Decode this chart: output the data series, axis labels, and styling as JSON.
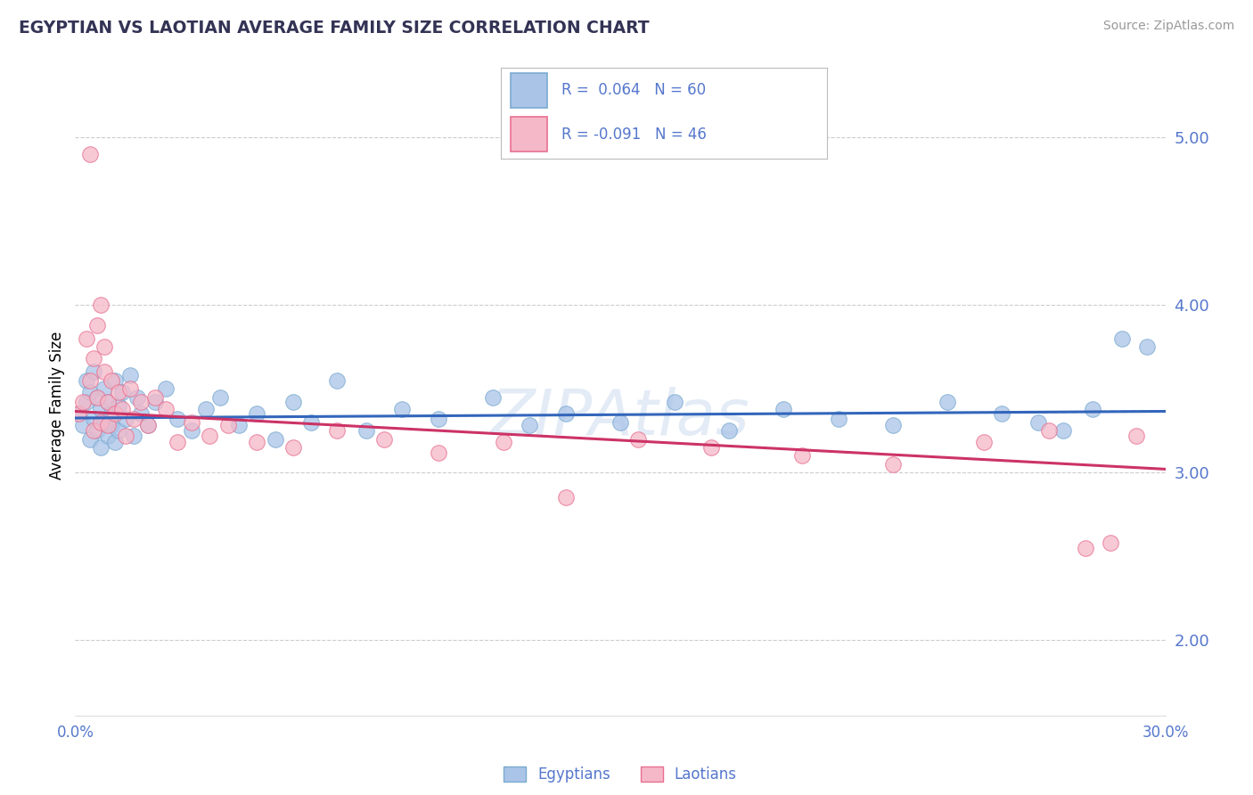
{
  "title": "EGYPTIAN VS LAOTIAN AVERAGE FAMILY SIZE CORRELATION CHART",
  "source_text": "Source: ZipAtlas.com",
  "ylabel": "Average Family Size",
  "xmin": 0.0,
  "xmax": 0.3,
  "ymin": 1.55,
  "ymax": 5.25,
  "yticks": [
    2.0,
    3.0,
    4.0,
    5.0
  ],
  "xticks": [
    0.0,
    0.05,
    0.1,
    0.15,
    0.2,
    0.25,
    0.3
  ],
  "xtick_labels": [
    "0.0%",
    "",
    "",
    "",
    "",
    "",
    "30.0%"
  ],
  "background_color": "#ffffff",
  "grid_color": "#cccccc",
  "blue_scatter_color": "#aac4e8",
  "blue_edge_color": "#7aaad0",
  "pink_scatter_color": "#f5b8c8",
  "pink_edge_color": "#e87090",
  "trend_blue": "#3366bb",
  "trend_pink": "#cc3366",
  "axis_label_color": "#5577cc",
  "title_color": "#333355",
  "source_color": "#999999",
  "R_blue": 0.064,
  "N_blue": 60,
  "R_pink": -0.091,
  "N_pink": 46,
  "watermark_color": "#c8d8ee",
  "blue_scatter_x": [
    0.001,
    0.002,
    0.003,
    0.003,
    0.004,
    0.004,
    0.005,
    0.005,
    0.006,
    0.006,
    0.007,
    0.007,
    0.008,
    0.008,
    0.009,
    0.009,
    0.01,
    0.01,
    0.011,
    0.011,
    0.012,
    0.012,
    0.013,
    0.014,
    0.015,
    0.016,
    0.017,
    0.018,
    0.02,
    0.022,
    0.025,
    0.028,
    0.032,
    0.036,
    0.04,
    0.045,
    0.05,
    0.055,
    0.06,
    0.065,
    0.072,
    0.08,
    0.09,
    0.1,
    0.115,
    0.125,
    0.135,
    0.15,
    0.165,
    0.18,
    0.195,
    0.21,
    0.225,
    0.24,
    0.255,
    0.265,
    0.272,
    0.28,
    0.288,
    0.295
  ],
  "blue_scatter_y": [
    3.35,
    3.28,
    3.42,
    3.55,
    3.2,
    3.48,
    3.32,
    3.6,
    3.25,
    3.45,
    3.38,
    3.15,
    3.5,
    3.3,
    3.42,
    3.22,
    3.35,
    3.28,
    3.55,
    3.18,
    3.4,
    3.25,
    3.48,
    3.32,
    3.58,
    3.22,
    3.45,
    3.35,
    3.28,
    3.42,
    3.5,
    3.32,
    3.25,
    3.38,
    3.45,
    3.28,
    3.35,
    3.2,
    3.42,
    3.3,
    3.55,
    3.25,
    3.38,
    3.32,
    3.45,
    3.28,
    3.35,
    3.3,
    3.42,
    3.25,
    3.38,
    3.32,
    3.28,
    3.42,
    3.35,
    3.3,
    3.25,
    3.38,
    3.8,
    3.75
  ],
  "pink_scatter_x": [
    0.001,
    0.002,
    0.003,
    0.004,
    0.004,
    0.005,
    0.005,
    0.006,
    0.006,
    0.007,
    0.007,
    0.008,
    0.008,
    0.009,
    0.009,
    0.01,
    0.011,
    0.012,
    0.013,
    0.014,
    0.015,
    0.016,
    0.018,
    0.02,
    0.022,
    0.025,
    0.028,
    0.032,
    0.037,
    0.042,
    0.05,
    0.06,
    0.072,
    0.085,
    0.1,
    0.118,
    0.135,
    0.155,
    0.175,
    0.2,
    0.225,
    0.25,
    0.268,
    0.278,
    0.285,
    0.292
  ],
  "pink_scatter_y": [
    3.35,
    3.42,
    3.8,
    3.55,
    4.9,
    3.25,
    3.68,
    3.45,
    3.88,
    3.3,
    4.0,
    3.6,
    3.75,
    3.42,
    3.28,
    3.55,
    3.35,
    3.48,
    3.38,
    3.22,
    3.5,
    3.32,
    3.42,
    3.28,
    3.45,
    3.38,
    3.18,
    3.3,
    3.22,
    3.28,
    3.18,
    3.15,
    3.25,
    3.2,
    3.12,
    3.18,
    2.85,
    3.2,
    3.15,
    3.1,
    3.05,
    3.18,
    3.25,
    2.55,
    2.58,
    3.22
  ]
}
